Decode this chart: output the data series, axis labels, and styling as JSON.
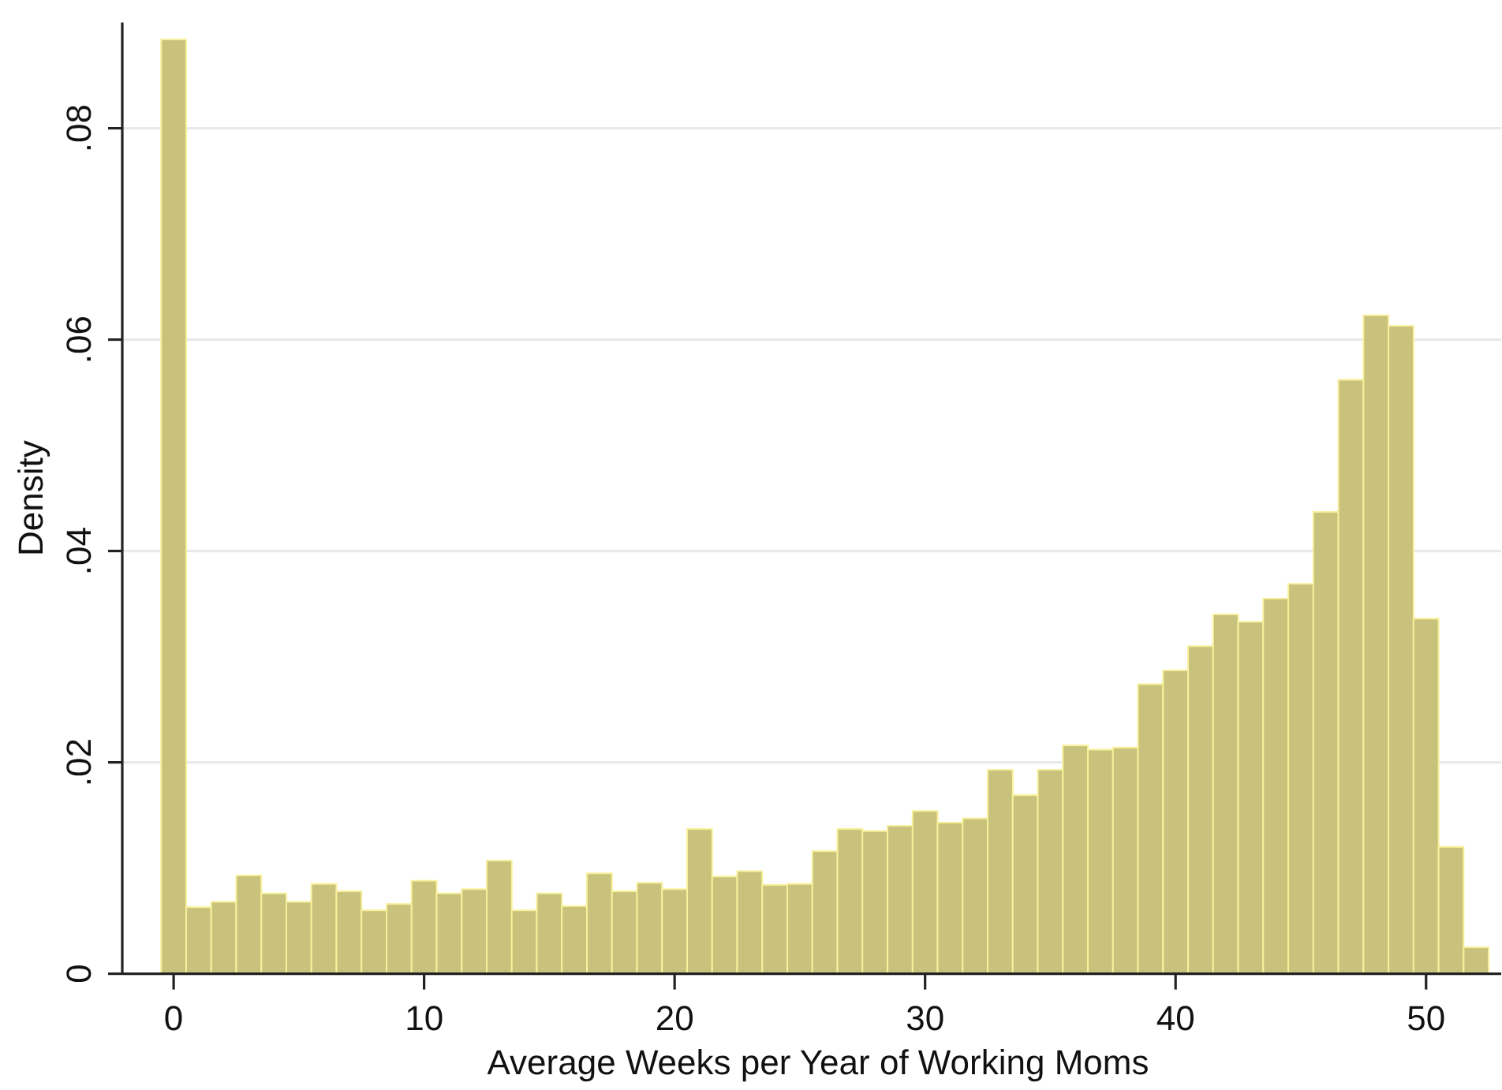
{
  "chart_data": {
    "type": "histogram",
    "xlabel": "Average Weeks per Year of Working Moms",
    "ylabel": "Density",
    "bins": [
      -0.5,
      0.5,
      1.5,
      2.5,
      3.5,
      4.5,
      5.5,
      6.5,
      7.5,
      8.5,
      9.5,
      10.5,
      11.5,
      12.5,
      13.5,
      14.5,
      15.5,
      16.5,
      17.5,
      18.5,
      19.5,
      20.5,
      21.5,
      22.5,
      23.5,
      24.5,
      25.5,
      26.5,
      27.5,
      28.5,
      29.5,
      30.5,
      31.5,
      32.5,
      33.5,
      34.5,
      35.5,
      36.5,
      37.5,
      38.5,
      39.5,
      40.5,
      41.5,
      42.5,
      43.5,
      44.5,
      45.5,
      46.5,
      47.5,
      48.5,
      49.5,
      50.5,
      51.5,
      52.5
    ],
    "values": [
      0.0884,
      0.0063,
      0.0068,
      0.0093,
      0.0076,
      0.0068,
      0.0085,
      0.0078,
      0.006,
      0.0066,
      0.0088,
      0.0076,
      0.008,
      0.0107,
      0.006,
      0.0076,
      0.0064,
      0.0095,
      0.0078,
      0.0086,
      0.008,
      0.0137,
      0.0092,
      0.0097,
      0.0084,
      0.0085,
      0.0116,
      0.0137,
      0.0135,
      0.014,
      0.0154,
      0.0143,
      0.0147,
      0.0193,
      0.0169,
      0.0193,
      0.0216,
      0.0212,
      0.0214,
      0.0274,
      0.0287,
      0.031,
      0.034,
      0.0333,
      0.0355,
      0.0369,
      0.0437,
      0.0562,
      0.0623,
      0.0613,
      0.0336,
      0.012,
      0.0025
    ],
    "color": "#c8c27c",
    "xlim": [
      -2.05,
      53
    ],
    "ylim": [
      0,
      0.09
    ],
    "xticks": [
      0,
      10,
      20,
      30,
      40,
      50
    ],
    "yticks": [
      0,
      {
        "value": 0.02,
        "label": ".02"
      },
      {
        "value": 0.04,
        "label": ".04"
      },
      {
        "value": 0.06,
        "label": ".06"
      },
      {
        "value": 0.08,
        "label": ".08"
      }
    ],
    "grid": "y"
  }
}
